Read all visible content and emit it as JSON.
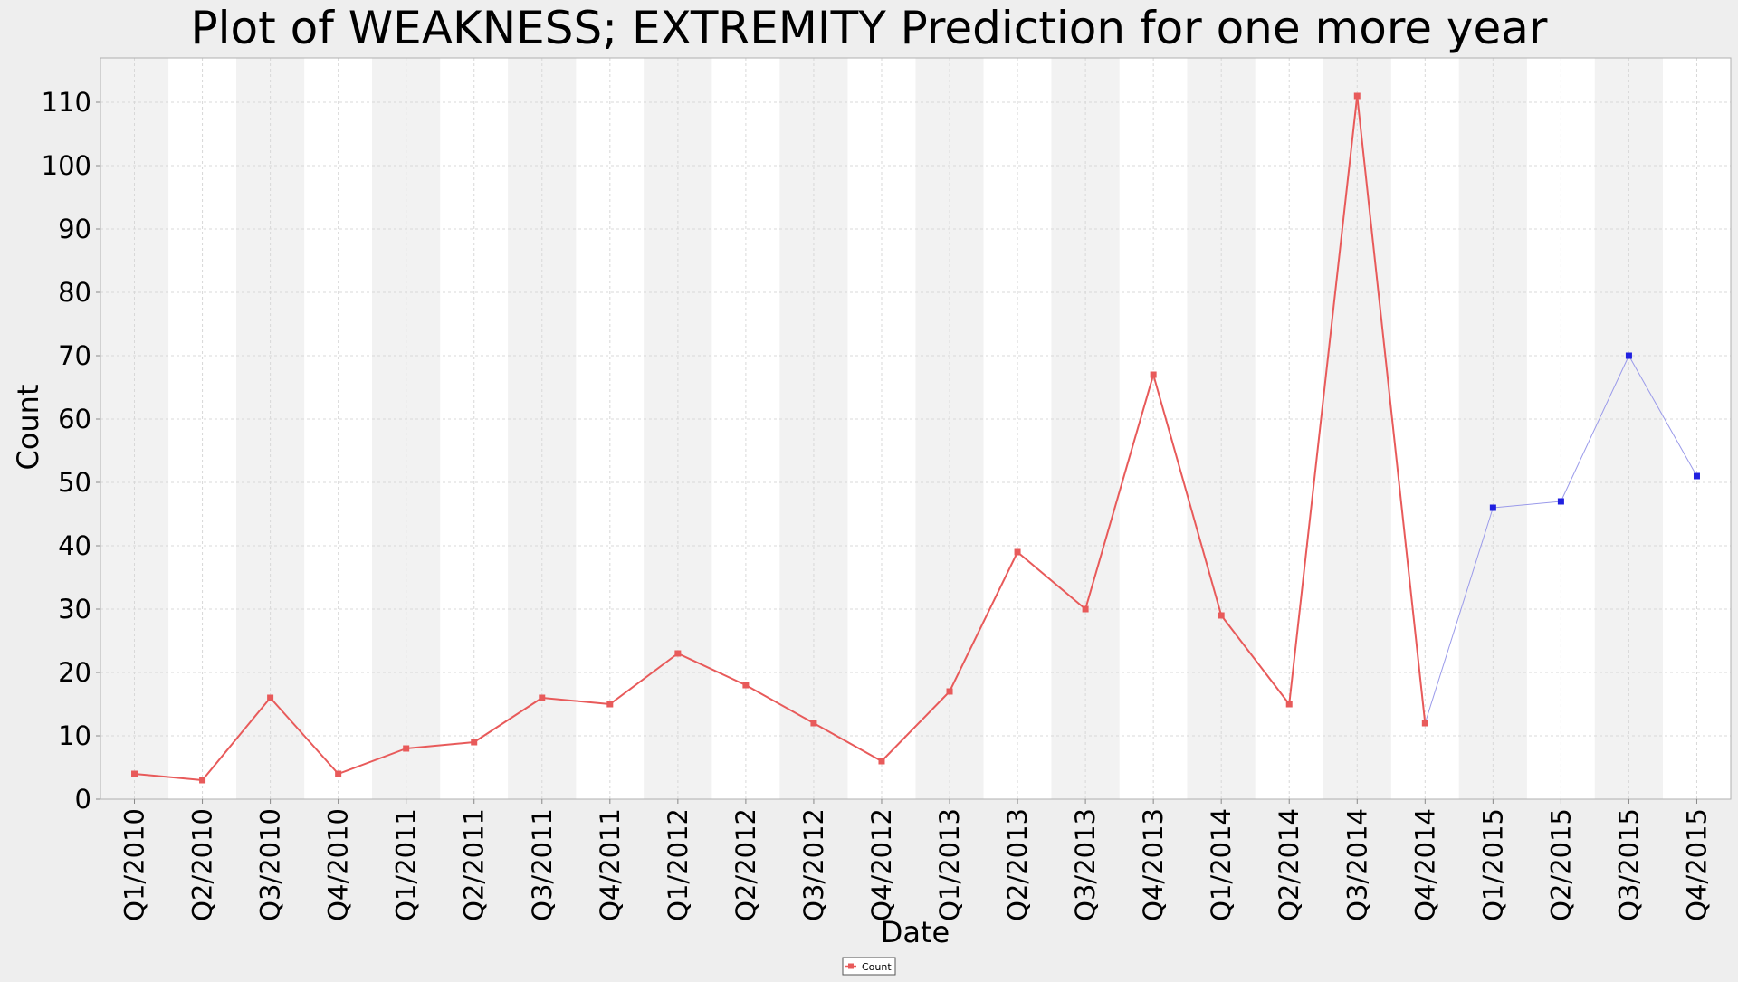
{
  "chart_data": {
    "type": "line",
    "title": "Plot of WEAKNESS; EXTREMITY Prediction for one more year",
    "xlabel": "Date",
    "ylabel": "Count",
    "ylim": [
      0,
      117
    ],
    "yticks": [
      0,
      10,
      20,
      30,
      40,
      50,
      60,
      70,
      80,
      90,
      100,
      110
    ],
    "grid": true,
    "legend_position": "bottom-center",
    "categories": [
      "Q1/2010",
      "Q2/2010",
      "Q3/2010",
      "Q4/2010",
      "Q1/2011",
      "Q2/2011",
      "Q3/2011",
      "Q4/2011",
      "Q1/2012",
      "Q2/2012",
      "Q3/2012",
      "Q4/2012",
      "Q1/2013",
      "Q2/2013",
      "Q3/2013",
      "Q4/2013",
      "Q1/2014",
      "Q2/2014",
      "Q3/2014",
      "Q4/2014",
      "Q1/2015",
      "Q2/2015",
      "Q3/2015",
      "Q4/2015"
    ],
    "series": [
      {
        "name": "Count",
        "color": "#e85a5a",
        "values": [
          4,
          3,
          16,
          4,
          8,
          9,
          16,
          15,
          23,
          18,
          12,
          6,
          17,
          39,
          30,
          67,
          29,
          15,
          111,
          12,
          null,
          null,
          null,
          null
        ]
      },
      {
        "color": "#2020e0",
        "line_color": "#9a9aea",
        "values": [
          null,
          null,
          null,
          null,
          null,
          null,
          null,
          null,
          null,
          null,
          null,
          null,
          null,
          null,
          null,
          null,
          null,
          null,
          null,
          12,
          46,
          47,
          70,
          51
        ]
      }
    ],
    "band_colors": [
      "#f2f2f2",
      "#ffffff"
    ],
    "gridline_color": "#d8d8d8"
  }
}
